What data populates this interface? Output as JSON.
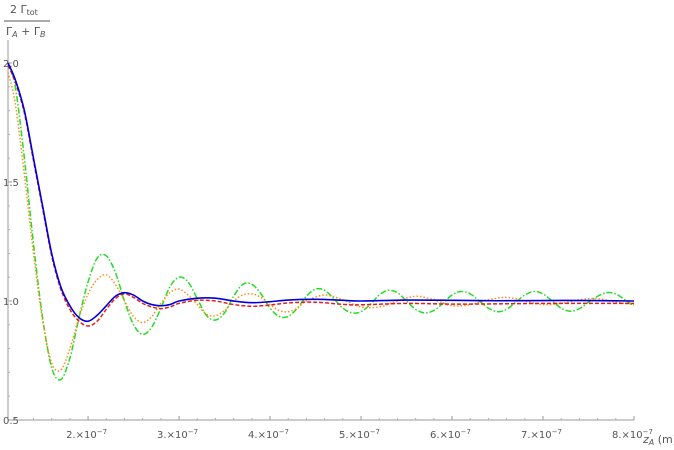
{
  "chart_data": {
    "type": "line",
    "title": "",
    "ylabel": {
      "numerator": "2 Γ",
      "numerator_sub": "tot",
      "denominator": "Γ",
      "denominator_sub_a": "A",
      "denominator_mid": " + Γ",
      "denominator_sub_b": "B"
    },
    "xlabel": {
      "main": "z",
      "sub": "A",
      "unit": " (m)"
    },
    "xlim": [
      1.12e-07,
      8e-07
    ],
    "ylim": [
      0.5,
      2.0
    ],
    "x_ticks": [
      {
        "value": 2e-07,
        "mantissa": "2.",
        "base": "×10",
        "exp": "−7"
      },
      {
        "value": 3e-07,
        "mantissa": "3.",
        "base": "×10",
        "exp": "−7"
      },
      {
        "value": 4e-07,
        "mantissa": "4.",
        "base": "×10",
        "exp": "−7"
      },
      {
        "value": 5e-07,
        "mantissa": "5.",
        "base": "×10",
        "exp": "−7"
      },
      {
        "value": 6e-07,
        "mantissa": "6.",
        "base": "×10",
        "exp": "−7"
      },
      {
        "value": 7e-07,
        "mantissa": "7.",
        "base": "×10",
        "exp": "−7"
      },
      {
        "value": 8e-07,
        "mantissa": "8.",
        "base": "×10",
        "exp": "−7"
      }
    ],
    "y_ticks": [
      {
        "value": 0.5,
        "label": "0.5"
      },
      {
        "value": 1.0,
        "label": "1.0"
      },
      {
        "value": 1.5,
        "label": "1.5"
      },
      {
        "value": 2.0,
        "label": "2.0"
      }
    ],
    "grid": false,
    "series": [
      {
        "color": "#0000d8",
        "style": "solid",
        "points": [
          [
            1.12e-07,
            2.0
          ],
          [
            1.2e-07,
            1.93
          ],
          [
            1.3e-07,
            1.8
          ],
          [
            1.4e-07,
            1.6
          ],
          [
            1.5e-07,
            1.4
          ],
          [
            1.6e-07,
            1.2
          ],
          [
            1.7e-07,
            1.06
          ],
          [
            1.8e-07,
            0.98
          ],
          [
            1.9e-07,
            0.93
          ],
          [
            2e-07,
            0.915
          ],
          [
            2.1e-07,
            0.94
          ],
          [
            2.2e-07,
            0.98
          ],
          [
            2.3e-07,
            1.02
          ],
          [
            2.4e-07,
            1.035
          ],
          [
            2.5e-07,
            1.025
          ],
          [
            2.6e-07,
            1.0
          ],
          [
            2.7e-07,
            0.985
          ],
          [
            2.8e-07,
            0.98
          ],
          [
            2.9e-07,
            0.985
          ],
          [
            3e-07,
            1.0
          ],
          [
            3.2e-07,
            1.012
          ],
          [
            3.4e-07,
            1.012
          ],
          [
            3.6e-07,
            1.0
          ],
          [
            3.8e-07,
            0.993
          ],
          [
            4e-07,
            0.997
          ],
          [
            4.2e-07,
            1.004
          ],
          [
            4.5e-07,
            1.007
          ],
          [
            4.8e-07,
            1.003
          ],
          [
            5e-07,
            1.0
          ],
          [
            5.5e-07,
            1.004
          ],
          [
            6e-07,
            1.003
          ],
          [
            6.5e-07,
            1.001
          ],
          [
            7e-07,
            1.002
          ],
          [
            7.5e-07,
            1.002
          ],
          [
            8e-07,
            1.0
          ]
        ]
      },
      {
        "color": "#e02020",
        "style": "dashed",
        "points": [
          [
            1.12e-07,
            1.99
          ],
          [
            1.2e-07,
            1.92
          ],
          [
            1.3e-07,
            1.79
          ],
          [
            1.4e-07,
            1.59
          ],
          [
            1.5e-07,
            1.39
          ],
          [
            1.6e-07,
            1.19
          ],
          [
            1.7e-07,
            1.05
          ],
          [
            1.8e-07,
            0.965
          ],
          [
            1.9e-07,
            0.915
          ],
          [
            2e-07,
            0.895
          ],
          [
            2.1e-07,
            0.915
          ],
          [
            2.2e-07,
            0.965
          ],
          [
            2.3e-07,
            1.01
          ],
          [
            2.4e-07,
            1.03
          ],
          [
            2.5e-07,
            1.015
          ],
          [
            2.6e-07,
            0.99
          ],
          [
            2.7e-07,
            0.975
          ],
          [
            2.8e-07,
            0.968
          ],
          [
            2.9e-07,
            0.975
          ],
          [
            3e-07,
            0.99
          ],
          [
            3.2e-07,
            1.003
          ],
          [
            3.4e-07,
            1.0
          ],
          [
            3.6e-07,
            0.985
          ],
          [
            3.8e-07,
            0.978
          ],
          [
            4e-07,
            0.983
          ],
          [
            4.2e-07,
            0.992
          ],
          [
            4.5e-07,
            0.995
          ],
          [
            4.8e-07,
            0.986
          ],
          [
            5e-07,
            0.984
          ],
          [
            5.5e-07,
            0.99
          ],
          [
            6e-07,
            0.987
          ],
          [
            6.5e-07,
            0.988
          ],
          [
            7e-07,
            0.99
          ],
          [
            7.5e-07,
            0.99
          ],
          [
            8e-07,
            0.99
          ]
        ]
      },
      {
        "color": "#ff8c1a",
        "style": "dotted",
        "points": [
          [
            1.12e-07,
            1.96
          ],
          [
            1.2e-07,
            1.83
          ],
          [
            1.3e-07,
            1.53
          ],
          [
            1.4e-07,
            1.2
          ],
          [
            1.5e-07,
            0.92
          ],
          [
            1.6e-07,
            0.74
          ],
          [
            1.7e-07,
            0.71
          ],
          [
            1.8e-07,
            0.8
          ],
          [
            1.9e-07,
            0.93
          ],
          [
            2e-07,
            1.03
          ],
          [
            2.1e-07,
            1.09
          ],
          [
            2.2e-07,
            1.11
          ],
          [
            2.3e-07,
            1.07
          ],
          [
            2.4e-07,
            1.0
          ],
          [
            2.5e-07,
            0.935
          ],
          [
            2.6e-07,
            0.91
          ],
          [
            2.7e-07,
            0.935
          ],
          [
            2.8e-07,
            0.99
          ],
          [
            2.9e-07,
            1.035
          ],
          [
            3e-07,
            1.05
          ],
          [
            3.1e-07,
            1.025
          ],
          [
            3.2e-07,
            0.985
          ],
          [
            3.3e-07,
            0.945
          ],
          [
            3.4e-07,
            0.938
          ],
          [
            3.5e-07,
            0.96
          ],
          [
            3.6e-07,
            1.0
          ],
          [
            3.7e-07,
            1.025
          ],
          [
            3.8e-07,
            1.03
          ],
          [
            3.9e-07,
            1.015
          ],
          [
            4e-07,
            0.985
          ],
          [
            4.1e-07,
            0.96
          ],
          [
            4.2e-07,
            0.955
          ],
          [
            4.3e-07,
            0.97
          ],
          [
            4.4e-07,
            1.0
          ],
          [
            4.6e-07,
            1.025
          ],
          [
            4.8e-07,
            1.005
          ],
          [
            5e-07,
            0.975
          ],
          [
            5.2e-07,
            0.975
          ],
          [
            5.4e-07,
            1.0
          ],
          [
            5.6e-07,
            1.02
          ],
          [
            5.8e-07,
            1.005
          ],
          [
            6e-07,
            0.98
          ],
          [
            6.2e-07,
            0.985
          ],
          [
            6.4e-07,
            1.005
          ],
          [
            6.6e-07,
            1.015
          ],
          [
            6.8e-07,
            1.0
          ],
          [
            7e-07,
            0.985
          ],
          [
            7.2e-07,
            0.99
          ],
          [
            7.4e-07,
            1.005
          ],
          [
            7.6e-07,
            1.01
          ],
          [
            7.8e-07,
            0.995
          ],
          [
            8e-07,
            0.985
          ]
        ]
      },
      {
        "color": "#22dd22",
        "style": "dashdot",
        "points": [
          [
            1.12e-07,
            2.0
          ],
          [
            1.2e-07,
            1.9
          ],
          [
            1.3e-07,
            1.6
          ],
          [
            1.4e-07,
            1.24
          ],
          [
            1.5e-07,
            0.93
          ],
          [
            1.6e-07,
            0.72
          ],
          [
            1.7e-07,
            0.67
          ],
          [
            1.8e-07,
            0.76
          ],
          [
            1.9e-07,
            0.93
          ],
          [
            2e-07,
            1.08
          ],
          [
            2.1e-07,
            1.18
          ],
          [
            2.2e-07,
            1.19
          ],
          [
            2.3e-07,
            1.12
          ],
          [
            2.4e-07,
            1.0
          ],
          [
            2.5e-07,
            0.9
          ],
          [
            2.6e-07,
            0.86
          ],
          [
            2.7e-07,
            0.89
          ],
          [
            2.8e-07,
            0.97
          ],
          [
            2.9e-07,
            1.06
          ],
          [
            3e-07,
            1.1
          ],
          [
            3.1e-07,
            1.08
          ],
          [
            3.2e-07,
            1.01
          ],
          [
            3.3e-07,
            0.94
          ],
          [
            3.4e-07,
            0.92
          ],
          [
            3.5e-07,
            0.95
          ],
          [
            3.6e-07,
            1.02
          ],
          [
            3.7e-07,
            1.07
          ],
          [
            3.8e-07,
            1.07
          ],
          [
            3.9e-07,
            1.03
          ],
          [
            4e-07,
            0.97
          ],
          [
            4.1e-07,
            0.935
          ],
          [
            4.2e-07,
            0.935
          ],
          [
            4.3e-07,
            0.97
          ],
          [
            4.4e-07,
            1.02
          ],
          [
            4.5e-07,
            1.05
          ],
          [
            4.6e-07,
            1.045
          ],
          [
            4.7e-07,
            1.01
          ],
          [
            4.8e-07,
            0.97
          ],
          [
            4.9e-07,
            0.95
          ],
          [
            5e-07,
            0.955
          ],
          [
            5.1e-07,
            0.985
          ],
          [
            5.2e-07,
            1.025
          ],
          [
            5.3e-07,
            1.045
          ],
          [
            5.4e-07,
            1.035
          ],
          [
            5.5e-07,
            1.0
          ],
          [
            5.6e-07,
            0.965
          ],
          [
            5.7e-07,
            0.95
          ],
          [
            5.8e-07,
            0.96
          ],
          [
            5.9e-07,
            0.99
          ],
          [
            6e-07,
            1.025
          ],
          [
            6.1e-07,
            1.04
          ],
          [
            6.2e-07,
            1.03
          ],
          [
            6.3e-07,
            1.0
          ],
          [
            6.4e-07,
            0.97
          ],
          [
            6.5e-07,
            0.955
          ],
          [
            6.6e-07,
            0.965
          ],
          [
            6.7e-07,
            0.995
          ],
          [
            6.8e-07,
            1.025
          ],
          [
            6.9e-07,
            1.04
          ],
          [
            7e-07,
            1.03
          ],
          [
            7.1e-07,
            1.0
          ],
          [
            7.2e-07,
            0.97
          ],
          [
            7.3e-07,
            0.957
          ],
          [
            7.4e-07,
            0.968
          ],
          [
            7.5e-07,
            0.995
          ],
          [
            7.6e-07,
            1.02
          ],
          [
            7.7e-07,
            1.035
          ],
          [
            7.8e-07,
            1.03
          ],
          [
            7.9e-07,
            1.005
          ],
          [
            8e-07,
            0.98
          ]
        ]
      }
    ]
  }
}
